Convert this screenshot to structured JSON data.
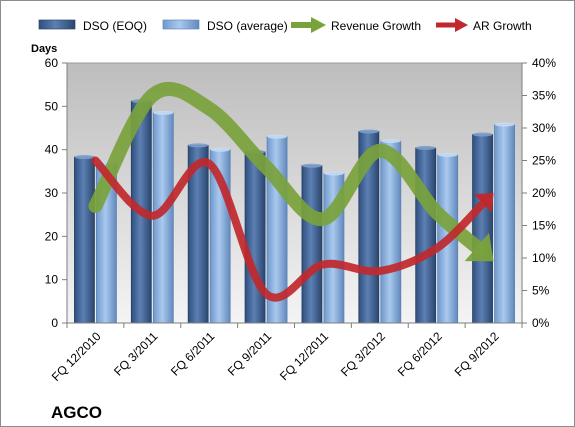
{
  "chart_data": {
    "type": "bar",
    "company": "AGCO",
    "ylabel_left": "Days",
    "categories": [
      "FQ 12/2010",
      "FQ 3/2011",
      "FQ 6/2011",
      "FQ 9/2011",
      "FQ 12/2011",
      "FQ 3/2012",
      "FQ 6/2012",
      "FQ 9/2012"
    ],
    "ylim_left": [
      0,
      60
    ],
    "yticks_left": [
      "0",
      "10",
      "20",
      "30",
      "40",
      "50",
      "60"
    ],
    "ylim_right": [
      0,
      40
    ],
    "yticks_right": [
      "0%",
      "5%",
      "10%",
      "15%",
      "20%",
      "25%",
      "30%",
      "35%",
      "40%"
    ],
    "series": [
      {
        "name": "DSO (EOQ)",
        "kind": "bar",
        "axis": "left",
        "color": "#4a6d9e",
        "values": [
          38.3,
          51.2,
          41.0,
          39.5,
          36.3,
          44.2,
          40.4,
          43.5
        ]
      },
      {
        "name": "DSO (average)",
        "kind": "bar",
        "axis": "left",
        "color": "#8db3e2",
        "values": [
          37.0,
          48.5,
          40.0,
          43.0,
          34.5,
          42.0,
          38.8,
          45.8
        ]
      },
      {
        "name": "Revenue Growth",
        "kind": "arrow-line",
        "axis": "right",
        "color": "#7aa23c",
        "values": [
          18.0,
          35.0,
          33.0,
          24.0,
          16.0,
          26.5,
          17.0,
          9.5
        ]
      },
      {
        "name": "AR Growth",
        "kind": "arrow-line",
        "axis": "right",
        "color": "#c0282d",
        "values": [
          25.0,
          16.5,
          24.5,
          4.5,
          9.0,
          8.0,
          11.5,
          20.0
        ]
      }
    ],
    "grid": false,
    "legend_position": "top"
  }
}
